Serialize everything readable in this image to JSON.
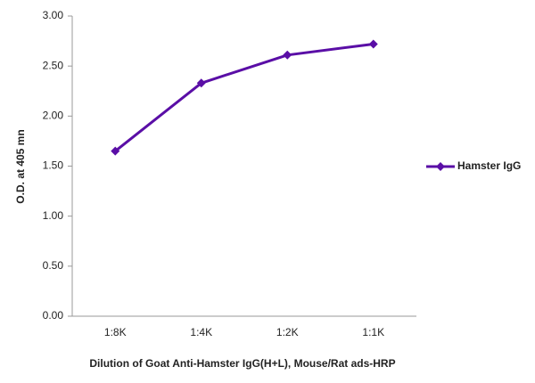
{
  "chart_data": {
    "type": "line",
    "categories": [
      "1:8K",
      "1:4K",
      "1:2K",
      "1:1K"
    ],
    "series": [
      {
        "name": "Hamster IgG",
        "color": "#5a0ea6",
        "values": [
          1.65,
          2.33,
          2.61,
          2.72
        ]
      }
    ],
    "ylim": [
      0,
      3
    ],
    "yticks": [
      {
        "value": 0,
        "label": "0.00"
      },
      {
        "value": 0.5,
        "label": "0.50"
      },
      {
        "value": 1,
        "label": "1.00"
      },
      {
        "value": 1.5,
        "label": "1.50"
      },
      {
        "value": 2,
        "label": "2.00"
      },
      {
        "value": 2.5,
        "label": "2.50"
      },
      {
        "value": 3,
        "label": "3.00"
      }
    ],
    "y_label": "O.D. at 405 mn",
    "x_label": "Dilution of Goat Anti-Hamster IgG(H+L), Mouse/Rat ads-HRP",
    "grid": false,
    "legend": "right"
  }
}
